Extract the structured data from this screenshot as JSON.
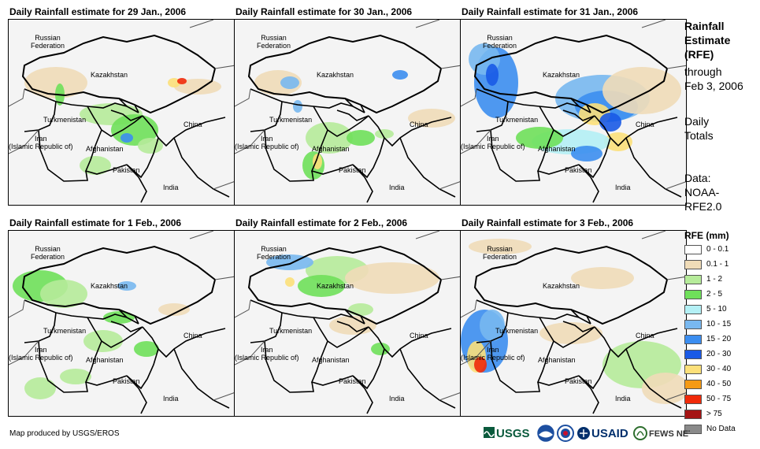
{
  "panels": [
    {
      "title": "Daily Rainfall estimate for 29 Jan., 2006",
      "id": "29-jan"
    },
    {
      "title": "Daily Rainfall estimate for 30 Jan., 2006",
      "id": "30-jan"
    },
    {
      "title": "Daily Rainfall estimate for 31 Jan., 2006",
      "id": "31-jan"
    },
    {
      "title": "Daily Rainfall estimate for 1 Feb., 2006",
      "id": "1-feb"
    },
    {
      "title": "Daily Rainfall estimate for 2 Feb., 2006",
      "id": "2-feb"
    },
    {
      "title": "Daily Rainfall estimate for 3 Feb., 2006",
      "id": "3-feb"
    }
  ],
  "map_labels": {
    "russia": "Russian\nFederation",
    "kazakhstan": "Kazakhstan",
    "turkmenistan": "Turkmenistan",
    "iran": "Iran\n(Islamic Republic of)",
    "afghanistan": "Afghanistan",
    "pakistan": "Pakistan",
    "china": "China",
    "india": "India"
  },
  "side_text": {
    "title_line1": "Rainfall",
    "title_line2": "Estimate",
    "title_line3": "(RFE)",
    "through": "through",
    "through_date": "Feb 3, 2006",
    "daily": "Daily",
    "totals": "Totals",
    "data_label": "Data:",
    "data_source1": "NOAA-",
    "data_source2": "RFE2.0"
  },
  "legend": {
    "title": "RFE (mm)",
    "items": [
      {
        "label": "0 - 0.1",
        "color": "#ffffff"
      },
      {
        "label": "0.1 - 1",
        "color": "#f0dcb8"
      },
      {
        "label": "1 - 2",
        "color": "#b6eb9a"
      },
      {
        "label": "2 - 5",
        "color": "#6fe05a"
      },
      {
        "label": "5 - 10",
        "color": "#b4f0f5"
      },
      {
        "label": "10 - 15",
        "color": "#78b8f0"
      },
      {
        "label": "15 - 20",
        "color": "#3c8ef0"
      },
      {
        "label": "20 - 30",
        "color": "#1a5ae6"
      },
      {
        "label": "30 - 40",
        "color": "#fce07a"
      },
      {
        "label": "40 - 50",
        "color": "#f59a14"
      },
      {
        "label": "50 - 75",
        "color": "#f02a0a"
      },
      {
        "label": "> 75",
        "color": "#a51414"
      },
      {
        "label": "No Data",
        "color": "#8a8a8a"
      }
    ]
  },
  "footer": "Map produced by USGS/EROS",
  "logos": {
    "usgs": "USGS",
    "usaid": "USAID",
    "fewsnet": "FEWS NET"
  },
  "colors": {
    "panel_bg": "#f4f4f4",
    "border": "#000000",
    "country_line": "#555555"
  }
}
